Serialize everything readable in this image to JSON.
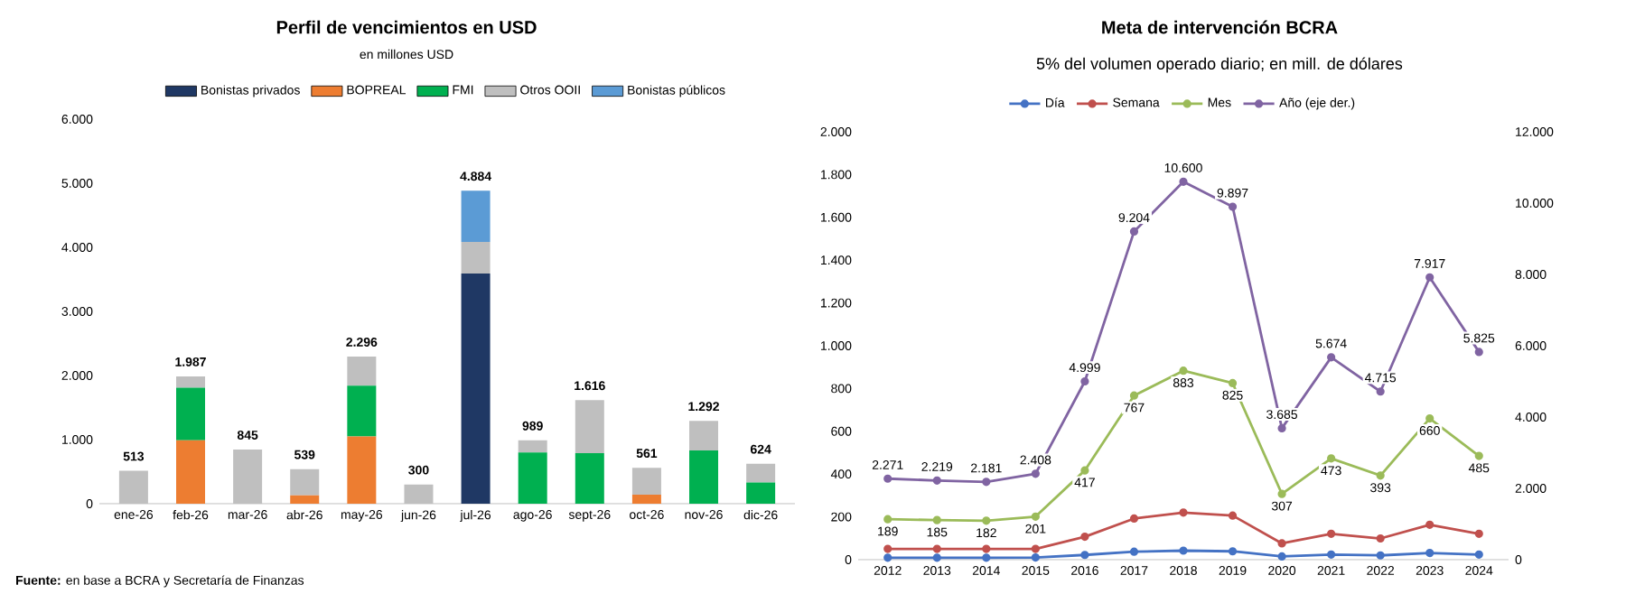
{
  "chart_data": [
    {
      "type": "bar",
      "stacked": true,
      "title": "Perfil de vencimientos en USD",
      "subtitle": "en millones USD",
      "legend": "top",
      "categories": [
        "ene-26",
        "feb-26",
        "mar-26",
        "abr-26",
        "may-26",
        "jun-26",
        "jul-26",
        "ago-26",
        "sept-26",
        "oct-26",
        "nov-26",
        "dic-26"
      ],
      "series": [
        {
          "name": "Bonistas privados",
          "color": "#1f3864",
          "values": [
            0,
            0,
            0,
            0,
            0,
            0,
            3590,
            0,
            0,
            0,
            0,
            0
          ]
        },
        {
          "name": "BOPREAL",
          "color": "#ed7d31",
          "values": [
            0,
            990,
            0,
            130,
            1050,
            0,
            0,
            0,
            0,
            140,
            0,
            0
          ]
        },
        {
          "name": "FMI",
          "color": "#00b050",
          "values": [
            0,
            820,
            0,
            0,
            790,
            0,
            0,
            800,
            790,
            0,
            830,
            330
          ]
        },
        {
          "name": "Otros OOII",
          "color": "#bfbfbf",
          "values": [
            513,
            177,
            845,
            409,
            456,
            300,
            495,
            189,
            826,
            421,
            462,
            294
          ]
        },
        {
          "name": "Bonistas públicos",
          "color": "#5b9bd5",
          "values": [
            0,
            0,
            0,
            0,
            0,
            0,
            799,
            0,
            0,
            0,
            0,
            0
          ]
        }
      ],
      "totals": [
        "513",
        "1.987",
        "845",
        "539",
        "2.296",
        "300",
        "4.884",
        "989",
        "1.616",
        "561",
        "1.292",
        "624"
      ],
      "ylim": [
        0,
        6000
      ],
      "yticks": [
        0,
        {
          "value": 1000,
          "label": "1.000"
        },
        {
          "value": 2000,
          "label": "2.000"
        },
        {
          "value": 3000,
          "label": "3.000"
        },
        {
          "value": 4000,
          "label": "4.000"
        },
        {
          "value": 5000,
          "label": "5.000"
        },
        {
          "value": 6000,
          "label": "6.000"
        }
      ],
      "annotations": [
        "**Fuente:** en base a BCRA y Secretaría de Finanzas"
      ]
    },
    {
      "type": "line",
      "title": "Meta de intervención BCRA",
      "subtitle": "5% del volumen operado diario; en mill. de dólares",
      "legend": "top",
      "marker": "circle",
      "line_style": "solid",
      "categories": [
        "2012",
        "2013",
        "2014",
        "2015",
        "2016",
        "2017",
        "2018",
        "2019",
        "2020",
        "2021",
        "2022",
        "2023",
        "2024"
      ],
      "series": [
        {
          "name": "Día",
          "color": "#4472c4",
          "values": [
            9,
            9,
            9,
            10,
            22,
            37,
            42,
            39,
            15,
            24,
            20,
            31,
            24
          ]
        },
        {
          "name": "Semana",
          "color": "#c0504d",
          "values": [
            50,
            50,
            50,
            50,
            107,
            192,
            220,
            206,
            76,
            121,
            99,
            163,
            121
          ]
        },
        {
          "name": "Mes",
          "color": "#9bbb59",
          "values": [
            189,
            185,
            182,
            201,
            417,
            767,
            883,
            825,
            307,
            473,
            393,
            660,
            485
          ],
          "value_labels": [
            "189",
            "185",
            "182",
            "201",
            "417",
            "767",
            "883",
            "825",
            "307",
            "473",
            "393",
            "660",
            "485"
          ]
        },
        {
          "name": "Año (eje der.)",
          "color": "#8064a2",
          "axis": "y2",
          "values": [
            2271,
            2219,
            2181,
            2408,
            4999,
            9204,
            10600,
            9897,
            3685,
            5674,
            4715,
            7917,
            5825
          ],
          "value_labels": [
            "2.271",
            "2.219",
            "2.181",
            "2.408",
            "4.999",
            "9.204",
            "10.600",
            "9.897",
            "3.685",
            "5.674",
            "4.715",
            "7.917",
            "5.825"
          ]
        }
      ],
      "ylim": [
        0,
        2000
      ],
      "yticks": [
        0,
        200,
        400,
        600,
        800,
        {
          "value": 1000,
          "label": "1.000"
        },
        {
          "value": 1200,
          "label": "1.200"
        },
        {
          "value": 1400,
          "label": "1.400"
        },
        {
          "value": 1600,
          "label": "1.600"
        },
        {
          "value": 1800,
          "label": "1.800"
        },
        {
          "value": 2000,
          "label": "2.000"
        }
      ],
      "y2lim": [
        0,
        12000
      ],
      "y2ticks": [
        0,
        {
          "value": 2000,
          "label": "2.000"
        },
        {
          "value": 4000,
          "label": "4.000"
        },
        {
          "value": 6000,
          "label": "6.000"
        },
        {
          "value": 8000,
          "label": "8.000"
        },
        {
          "value": 10000,
          "label": "10.000"
        },
        {
          "value": 12000,
          "label": "12.000"
        }
      ]
    }
  ]
}
